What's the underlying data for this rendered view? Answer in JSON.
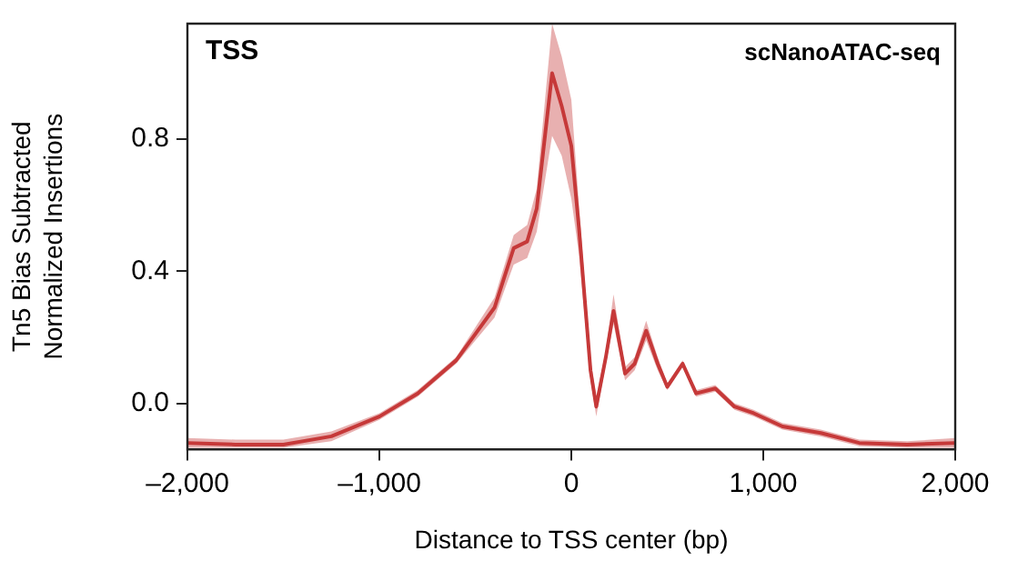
{
  "chart_data": {
    "type": "line",
    "title": "TSS",
    "xlabel": "Distance to TSS center (bp)",
    "ylabel": "Tn5 Bias Subtracted\nNormalized Insertions",
    "annotations": [
      "scNanoATAC-seq"
    ],
    "xlim": [
      -2000,
      2000
    ],
    "xticks": [
      {
        "value": -2000,
        "label": "–2,000"
      },
      {
        "value": -1000,
        "label": "–1,000"
      },
      0,
      {
        "value": 1000,
        "label": "1,000"
      },
      {
        "value": 2000,
        "label": "2,000"
      }
    ],
    "ylim": [
      -0.14,
      1.15
    ],
    "yticks": [
      {
        "value": 0,
        "label": "0.0"
      },
      0.4,
      0.8
    ],
    "grid": false,
    "legend": false,
    "marker": "none",
    "line_style": "solid",
    "series": [
      {
        "color": "#c63a3a",
        "x": [
          -2000,
          -1750,
          -1500,
          -1250,
          -1000,
          -800,
          -600,
          -500,
          -400,
          -300,
          -230,
          -180,
          -100,
          -50,
          0,
          40,
          100,
          130,
          180,
          220,
          280,
          330,
          390,
          450,
          500,
          580,
          650,
          750,
          850,
          950,
          1100,
          1300,
          1500,
          1750,
          2000
        ],
        "values": [
          -0.12,
          -0.125,
          -0.125,
          -0.1,
          -0.04,
          0.03,
          0.13,
          0.21,
          0.29,
          0.47,
          0.49,
          0.59,
          1.0,
          0.9,
          0.78,
          0.53,
          0.1,
          -0.01,
          0.14,
          0.28,
          0.09,
          0.12,
          0.22,
          0.12,
          0.05,
          0.12,
          0.03,
          0.045,
          -0.01,
          -0.03,
          -0.07,
          -0.09,
          -0.12,
          -0.125,
          -0.12
        ],
        "lower": [
          -0.135,
          -0.135,
          -0.135,
          -0.115,
          -0.05,
          0.02,
          0.12,
          0.19,
          0.26,
          0.42,
          0.44,
          0.52,
          0.81,
          0.75,
          0.62,
          0.45,
          0.07,
          -0.04,
          0.12,
          0.24,
          0.07,
          0.1,
          0.19,
          0.1,
          0.04,
          0.11,
          0.02,
          0.035,
          -0.02,
          -0.04,
          -0.08,
          -0.1,
          -0.13,
          -0.135,
          -0.135
        ],
        "upper": [
          -0.105,
          -0.11,
          -0.11,
          -0.085,
          -0.03,
          0.04,
          0.14,
          0.23,
          0.32,
          0.51,
          0.54,
          0.65,
          1.15,
          1.05,
          0.92,
          0.6,
          0.13,
          0.02,
          0.16,
          0.33,
          0.11,
          0.14,
          0.25,
          0.14,
          0.06,
          0.13,
          0.04,
          0.055,
          0.0,
          -0.02,
          -0.06,
          -0.08,
          -0.11,
          -0.115,
          -0.105
        ]
      }
    ]
  }
}
